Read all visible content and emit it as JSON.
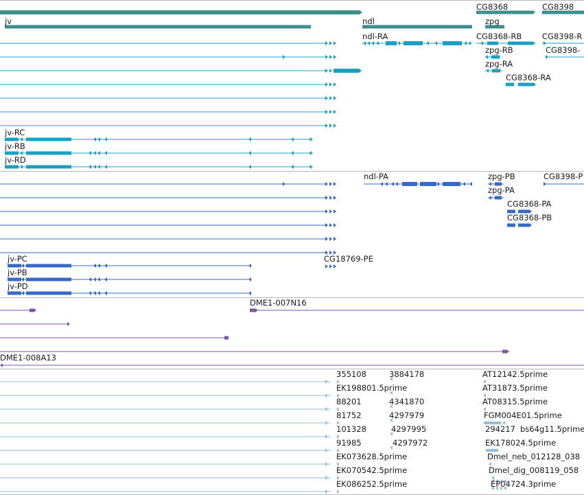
{
  "colors": {
    "gene": "#3b8f8e",
    "transcript": "#1b9fc5",
    "protein": "#3669c8",
    "clone": "#7a55a8",
    "est": "#8fc0de",
    "divider": "#b9b9b9"
  },
  "gene_track": {
    "labels": [
      "jv",
      "ndl",
      "CG8368",
      "zpg",
      "CG8398"
    ]
  },
  "transcript_track": {
    "labels": [
      "ndl-RA",
      "CG8368-RB",
      "CG8398-R",
      "zpg-RB",
      "CG8398-",
      "zpg-RA",
      "CG8368-RA",
      "jv-RC",
      "jv-RB",
      "jv-RD"
    ]
  },
  "protein_track": {
    "labels": [
      "ndl-PA",
      "zpg-PB",
      "CG8398-P",
      "zpg-PA",
      "CG8368-PA",
      "CG8368-PB",
      "jv-PC",
      "CG18769-PE",
      "jv-PB",
      "jv-PD"
    ]
  },
  "clone_track": {
    "labels": [
      "DME1-007N16",
      "DME1-008A13"
    ]
  },
  "est_track": {
    "labels": [
      "355108",
      "3884178",
      "AT12142.5prime",
      "EK198801.5prime",
      "AT31873.5prime",
      "88201",
      "4341870",
      "AT08315.5prime",
      "81752",
      "4297979",
      "FGM004E01.5prime",
      "101328",
      "4297995",
      "294217",
      "bs64g11.5prime",
      "91985",
      "4297972",
      "EK178024.5prime",
      "EK073628.5prime",
      "Dmel_neb_012128_038",
      "EK070542.5prime",
      "Dmel_dig_008119_058",
      "EK086252.5prime",
      "EP04724.3prime"
    ]
  }
}
